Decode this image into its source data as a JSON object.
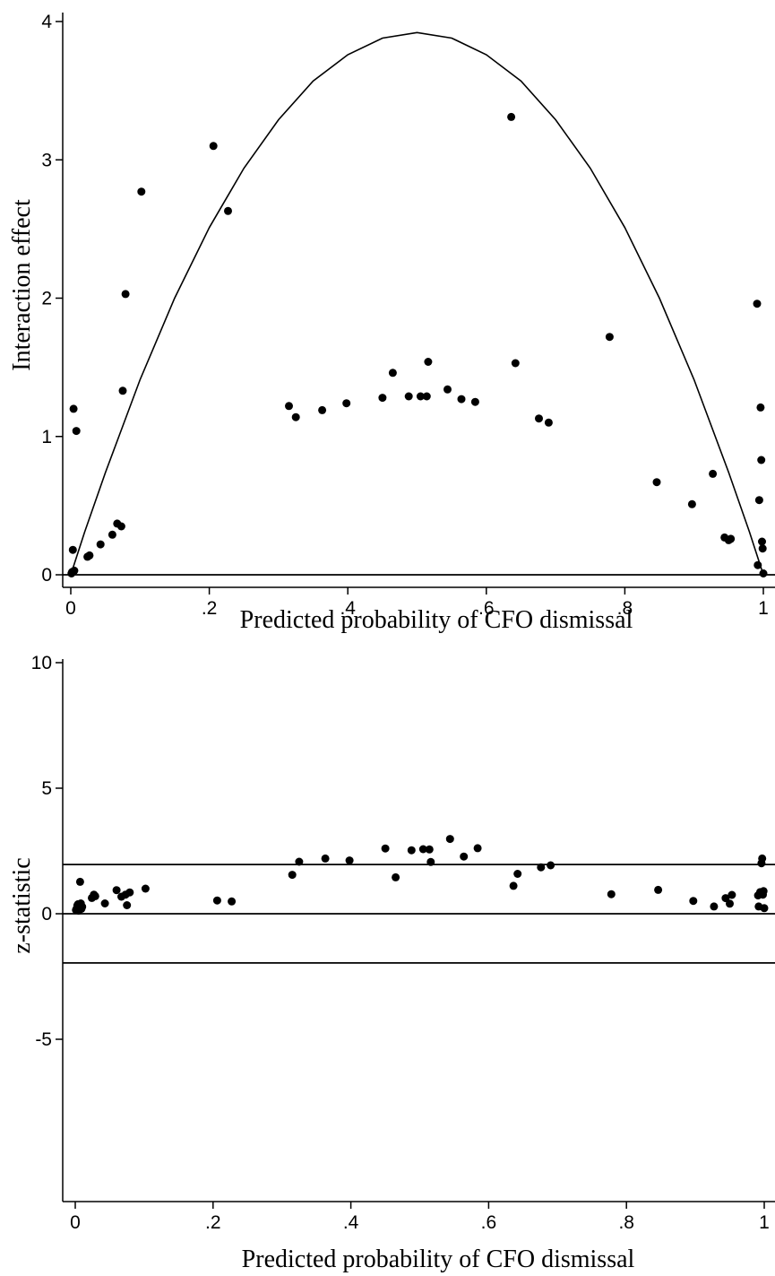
{
  "chart_data": [
    {
      "type": "scatter",
      "title": "",
      "xlabel": "Predicted probability of CFO dismissal",
      "ylabel": "Interaction effect",
      "xlim": [
        0,
        1
      ],
      "ylim": [
        0,
        4
      ],
      "xticks": [
        0,
        0.2,
        0.4,
        0.6,
        0.8,
        1
      ],
      "xtick_labels": [
        "0",
        ".2",
        ".4",
        ".6",
        ".8",
        "1"
      ],
      "yticks": [
        0,
        1,
        2,
        3,
        4
      ],
      "ytick_labels": [
        "0",
        "1",
        "2",
        "3",
        "4"
      ],
      "grid": false,
      "reference_lines": [
        0
      ],
      "series": [
        {
          "kind": "scatter",
          "points": [
            [
              0.001,
              0.01
            ],
            [
              0.002,
              0.02
            ],
            [
              0.003,
              0.18
            ],
            [
              0.004,
              1.2
            ],
            [
              0.008,
              1.04
            ],
            [
              0.005,
              0.03
            ],
            [
              0.024,
              0.13
            ],
            [
              0.027,
              0.14
            ],
            [
              0.043,
              0.22
            ],
            [
              0.06,
              0.29
            ],
            [
              0.067,
              0.37
            ],
            [
              0.073,
              0.35
            ],
            [
              0.075,
              1.33
            ],
            [
              0.079,
              2.03
            ],
            [
              0.102,
              2.77
            ],
            [
              0.206,
              3.1
            ],
            [
              0.227,
              2.63
            ],
            [
              0.315,
              1.22
            ],
            [
              0.325,
              1.14
            ],
            [
              0.363,
              1.19
            ],
            [
              0.398,
              1.24
            ],
            [
              0.45,
              1.28
            ],
            [
              0.465,
              1.46
            ],
            [
              0.488,
              1.29
            ],
            [
              0.505,
              1.29
            ],
            [
              0.514,
              1.29
            ],
            [
              0.516,
              1.54
            ],
            [
              0.544,
              1.34
            ],
            [
              0.564,
              1.27
            ],
            [
              0.584,
              1.25
            ],
            [
              0.636,
              3.31
            ],
            [
              0.642,
              1.53
            ],
            [
              0.676,
              1.13
            ],
            [
              0.69,
              1.1
            ],
            [
              0.778,
              1.72
            ],
            [
              0.846,
              0.67
            ],
            [
              0.897,
              0.51
            ],
            [
              0.927,
              0.73
            ],
            [
              0.944,
              0.27
            ],
            [
              0.95,
              0.25
            ],
            [
              0.953,
              0.26
            ],
            [
              0.991,
              1.96
            ],
            [
              0.992,
              0.07
            ],
            [
              0.994,
              0.54
            ],
            [
              0.996,
              1.21
            ],
            [
              0.997,
              0.83
            ],
            [
              0.998,
              0.24
            ],
            [
              0.999,
              0.19
            ],
            [
              1.0,
              0.01
            ]
          ]
        },
        {
          "kind": "line",
          "points": [
            [
              0.0,
              0.0
            ],
            [
              0.02,
              0.31
            ],
            [
              0.05,
              0.74
            ],
            [
              0.1,
              1.41
            ],
            [
              0.15,
              2.0
            ],
            [
              0.2,
              2.51
            ],
            [
              0.25,
              2.94
            ],
            [
              0.3,
              3.29
            ],
            [
              0.35,
              3.57
            ],
            [
              0.4,
              3.76
            ],
            [
              0.45,
              3.88
            ],
            [
              0.5,
              3.92
            ],
            [
              0.55,
              3.88
            ],
            [
              0.6,
              3.76
            ],
            [
              0.65,
              3.57
            ],
            [
              0.7,
              3.29
            ],
            [
              0.75,
              2.94
            ],
            [
              0.8,
              2.51
            ],
            [
              0.85,
              2.0
            ],
            [
              0.9,
              1.41
            ],
            [
              0.95,
              0.74
            ],
            [
              0.98,
              0.31
            ],
            [
              1.0,
              0.0
            ]
          ]
        }
      ]
    },
    {
      "type": "scatter",
      "title": "",
      "xlabel": "Predicted probability of CFO dismissal",
      "ylabel": "z-statistic",
      "xlim": [
        0,
        1
      ],
      "ylim": [
        -5,
        10
      ],
      "xticks": [
        0,
        0.2,
        0.4,
        0.6,
        0.8,
        1
      ],
      "xtick_labels": [
        "0",
        ".2",
        ".4",
        ".6",
        ".8",
        "1"
      ],
      "yticks": [
        -5,
        0,
        5,
        10
      ],
      "ytick_labels": [
        "-5",
        "0",
        "5",
        "10"
      ],
      "grid": false,
      "reference_lines": [
        -1.96,
        0,
        1.96
      ],
      "series": [
        {
          "kind": "scatter",
          "points": [
            [
              0.001,
              0.15
            ],
            [
              0.002,
              0.2
            ],
            [
              0.003,
              0.33
            ],
            [
              0.004,
              0.38
            ],
            [
              0.005,
              0.12
            ],
            [
              0.006,
              0.22
            ],
            [
              0.007,
              1.27
            ],
            [
              0.008,
              0.41
            ],
            [
              0.009,
              0.2
            ],
            [
              0.01,
              0.28
            ],
            [
              0.024,
              0.63
            ],
            [
              0.027,
              0.76
            ],
            [
              0.029,
              0.7
            ],
            [
              0.043,
              0.41
            ],
            [
              0.06,
              0.94
            ],
            [
              0.067,
              0.68
            ],
            [
              0.073,
              0.76
            ],
            [
              0.075,
              0.34
            ],
            [
              0.079,
              0.85
            ],
            [
              0.102,
              1.0
            ],
            [
              0.206,
              0.53
            ],
            [
              0.227,
              0.49
            ],
            [
              0.315,
              1.55
            ],
            [
              0.325,
              2.07
            ],
            [
              0.363,
              2.2
            ],
            [
              0.398,
              2.12
            ],
            [
              0.45,
              2.6
            ],
            [
              0.465,
              1.45
            ],
            [
              0.488,
              2.53
            ],
            [
              0.505,
              2.57
            ],
            [
              0.514,
              2.56
            ],
            [
              0.516,
              2.06
            ],
            [
              0.544,
              2.98
            ],
            [
              0.564,
              2.28
            ],
            [
              0.584,
              2.61
            ],
            [
              0.636,
              1.11
            ],
            [
              0.642,
              1.59
            ],
            [
              0.676,
              1.85
            ],
            [
              0.69,
              1.93
            ],
            [
              0.778,
              0.78
            ],
            [
              0.846,
              0.95
            ],
            [
              0.897,
              0.51
            ],
            [
              0.927,
              0.29
            ],
            [
              0.944,
              0.62
            ],
            [
              0.95,
              0.4
            ],
            [
              0.953,
              0.75
            ],
            [
              0.991,
              0.73
            ],
            [
              0.992,
              0.29
            ],
            [
              0.994,
              0.86
            ],
            [
              0.996,
              2.01
            ],
            [
              0.997,
              2.2
            ],
            [
              0.998,
              0.76
            ],
            [
              0.999,
              0.9
            ],
            [
              1.0,
              0.22
            ]
          ]
        }
      ]
    }
  ]
}
